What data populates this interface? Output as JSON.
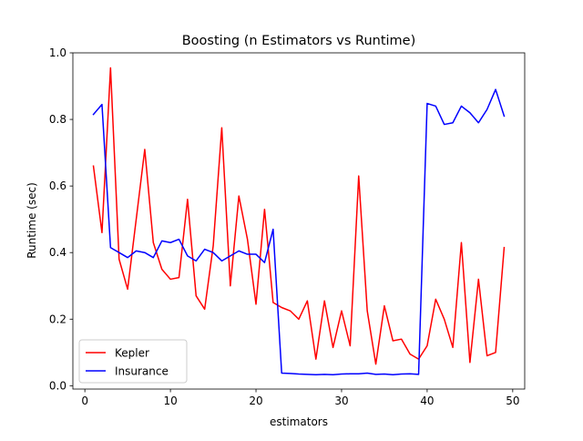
{
  "chart_data": {
    "type": "line",
    "title": "Boosting (n Estimators vs Runtime)",
    "xlabel": "estimators",
    "ylabel": "Runtime (sec)",
    "xlim": [
      -1.4,
      51.4
    ],
    "ylim": [
      -0.01,
      1.0
    ],
    "xticks": [
      0,
      10,
      20,
      30,
      40,
      50
    ],
    "yticks": [
      0.0,
      0.2,
      0.4,
      0.6,
      0.8,
      1.0
    ],
    "xtick_labels": [
      "0",
      "10",
      "20",
      "30",
      "40",
      "50"
    ],
    "ytick_labels": [
      "0.0",
      "0.2",
      "0.4",
      "0.6",
      "0.8",
      "1.0"
    ],
    "grid": false,
    "legend_position": "lower-left",
    "x": [
      1,
      2,
      3,
      4,
      5,
      6,
      7,
      8,
      9,
      10,
      11,
      12,
      13,
      14,
      15,
      16,
      17,
      18,
      19,
      20,
      21,
      22,
      23,
      24,
      25,
      26,
      27,
      28,
      29,
      30,
      31,
      32,
      33,
      34,
      35,
      36,
      37,
      38,
      39,
      40,
      41,
      42,
      43,
      44,
      45,
      46,
      47,
      48,
      49
    ],
    "series": [
      {
        "name": "Kepler",
        "color": "#ff0000",
        "values": [
          0.66,
          0.46,
          0.955,
          0.38,
          0.29,
          0.5,
          0.71,
          0.43,
          0.35,
          0.32,
          0.325,
          0.56,
          0.27,
          0.23,
          0.42,
          0.775,
          0.3,
          0.57,
          0.44,
          0.245,
          0.53,
          0.25,
          0.235,
          0.225,
          0.2,
          0.255,
          0.08,
          0.255,
          0.115,
          0.225,
          0.12,
          0.63,
          0.225,
          0.065,
          0.24,
          0.135,
          0.14,
          0.095,
          0.08,
          0.12,
          0.26,
          0.2,
          0.115,
          0.43,
          0.07,
          0.32,
          0.09,
          0.1,
          0.415
        ]
      },
      {
        "name": "Insurance",
        "color": "#0000ff",
        "values": [
          0.815,
          0.845,
          0.415,
          0.4,
          0.385,
          0.405,
          0.4,
          0.385,
          0.435,
          0.43,
          0.44,
          0.39,
          0.375,
          0.41,
          0.4,
          0.375,
          0.39,
          0.405,
          0.395,
          0.395,
          0.37,
          0.47,
          0.038,
          0.037,
          0.035,
          0.034,
          0.033,
          0.034,
          0.033,
          0.035,
          0.036,
          0.036,
          0.038,
          0.034,
          0.035,
          0.033,
          0.035,
          0.036,
          0.034,
          0.848,
          0.84,
          0.785,
          0.79,
          0.84,
          0.82,
          0.79,
          0.83,
          0.89,
          0.81
        ]
      }
    ]
  }
}
